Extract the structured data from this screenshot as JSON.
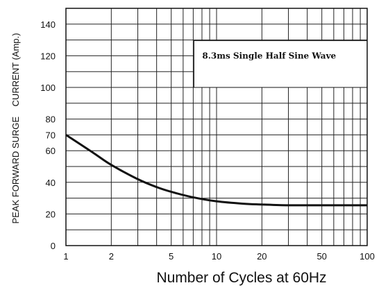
{
  "chart_data": {
    "type": "line",
    "title": "",
    "xlabel": "Number of Cycles at 60Hz",
    "ylabel": "PEAK FORWARD SURGE    CURRENT (Amp.)",
    "x_scale": "log",
    "xlim": [
      1,
      100
    ],
    "ylim": [
      0,
      150
    ],
    "x_ticks": [
      1,
      2,
      5,
      10,
      20,
      50,
      100
    ],
    "x_tick_labels": [
      "1",
      "2",
      "5",
      "10",
      "20",
      "50",
      "100"
    ],
    "y_ticks": [
      0,
      20,
      40,
      60,
      70,
      80,
      100,
      120,
      140
    ],
    "y_tick_labels": [
      "0",
      "20",
      "40",
      "60",
      "70",
      "80",
      "100",
      "120",
      "140"
    ],
    "grid": true,
    "annotations": [
      "8.3ms Single Half Sine Wave"
    ],
    "series": [
      {
        "x": [
          1,
          1.5,
          2,
          3,
          4,
          5,
          7,
          10,
          15,
          20,
          30,
          50,
          70,
          100
        ],
        "y": [
          70,
          59,
          51,
          42,
          37,
          34,
          30.5,
          28,
          26.5,
          26,
          25.5,
          25.5,
          25.5,
          25.5
        ]
      }
    ]
  }
}
